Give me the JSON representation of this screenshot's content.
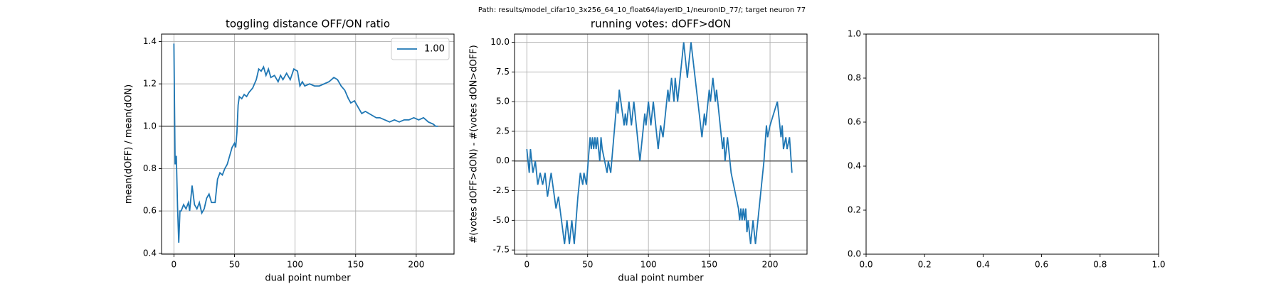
{
  "figure_title": "Path: results/model_cifar10_3x256_64_10_float64/layerID_1/neuronID_77/; target neuron 77",
  "chart_data": [
    {
      "type": "line",
      "title": "toggling distance OFF/ON ratio",
      "xlabel": "dual point number",
      "ylabel": "mean(dOFF) / mean(dON)",
      "x": [
        0,
        1,
        2,
        3,
        4,
        5,
        6,
        8,
        10,
        12,
        13,
        15,
        17,
        19,
        21,
        23,
        25,
        27,
        29,
        31,
        34,
        36,
        38,
        40,
        42,
        44,
        46,
        48,
        50,
        51,
        52,
        53,
        54,
        56,
        58,
        60,
        62,
        65,
        68,
        70,
        72,
        74,
        76,
        78,
        80,
        83,
        86,
        88,
        90,
        93,
        96,
        99,
        102,
        104,
        106,
        108,
        112,
        116,
        120,
        124,
        128,
        132,
        135,
        138,
        141,
        144,
        146,
        149,
        152,
        155,
        158,
        161,
        164,
        167,
        170,
        174,
        178,
        182,
        186,
        190,
        194,
        198,
        202,
        206,
        210,
        214,
        216,
        218
      ],
      "series": [
        {
          "name": "1.00",
          "color": "#1f77b4",
          "values": [
            1.39,
            0.82,
            0.86,
            0.62,
            0.45,
            0.6,
            0.6,
            0.63,
            0.61,
            0.64,
            0.6,
            0.72,
            0.63,
            0.61,
            0.64,
            0.59,
            0.61,
            0.66,
            0.68,
            0.64,
            0.64,
            0.75,
            0.78,
            0.77,
            0.8,
            0.82,
            0.86,
            0.9,
            0.92,
            0.9,
            0.97,
            1.1,
            1.14,
            1.13,
            1.15,
            1.14,
            1.16,
            1.18,
            1.22,
            1.27,
            1.26,
            1.28,
            1.24,
            1.27,
            1.23,
            1.24,
            1.21,
            1.24,
            1.22,
            1.25,
            1.22,
            1.27,
            1.26,
            1.19,
            1.21,
            1.19,
            1.2,
            1.19,
            1.19,
            1.2,
            1.21,
            1.23,
            1.22,
            1.19,
            1.17,
            1.13,
            1.11,
            1.12,
            1.09,
            1.06,
            1.07,
            1.06,
            1.05,
            1.04,
            1.04,
            1.03,
            1.02,
            1.03,
            1.02,
            1.03,
            1.03,
            1.04,
            1.03,
            1.04,
            1.02,
            1.01,
            1.0,
            1.0
          ]
        }
      ],
      "hline": 1,
      "hline_color": "#555555",
      "xlim": [
        -10.2,
        231.2
      ],
      "ylim": [
        0.396,
        1.435
      ],
      "xticks": [
        0,
        50,
        100,
        150,
        200
      ],
      "yticks": [
        0.4,
        0.6,
        0.8,
        {
          "value": 1,
          "label": "1.0"
        },
        1.2,
        1.4
      ],
      "grid": true,
      "legend": "upper right"
    },
    {
      "type": "line",
      "title": "running votes: dOFF>dON",
      "xlabel": "dual point number",
      "ylabel": "#(votes dOFF>dON) - #(votes dON>dOFF)",
      "x": [
        0,
        2,
        3,
        5,
        7,
        9,
        11,
        13,
        15,
        17,
        20,
        24,
        26,
        31,
        33,
        35,
        37,
        39,
        42,
        44,
        46,
        47,
        49,
        52,
        53,
        54,
        55,
        56,
        57,
        58,
        60,
        61,
        62,
        64,
        66,
        67,
        69,
        74,
        75,
        76,
        80,
        81,
        82,
        84,
        86,
        88,
        93,
        97,
        98,
        100,
        102,
        104,
        108,
        110,
        112,
        116,
        117,
        119,
        121,
        122,
        124,
        129,
        132,
        135,
        144,
        146,
        147,
        150,
        151,
        153,
        155,
        156,
        161,
        162,
        163,
        165,
        166,
        168,
        174,
        175,
        176,
        177,
        178,
        179,
        180,
        181,
        182,
        184,
        186,
        188,
        195,
        197,
        198,
        200,
        206,
        209,
        210,
        211,
        213,
        214,
        216,
        218
      ],
      "series": [
        {
          "name": null,
          "color": "#1f77b4",
          "values": [
            1,
            -1,
            1,
            -1,
            0,
            -2,
            -1,
            -2,
            -1,
            -3,
            -1,
            -4,
            -3,
            -7,
            -5,
            -7,
            -5,
            -7,
            -3,
            -1,
            -2,
            -1,
            -2,
            2,
            1,
            2,
            1,
            2,
            1,
            2,
            0,
            2,
            1,
            0,
            -1,
            0,
            -1,
            5,
            4,
            6,
            3,
            4,
            3,
            5,
            3,
            5,
            0,
            4,
            3,
            5,
            3,
            5,
            1,
            3,
            2,
            6,
            5,
            7,
            5,
            7,
            5,
            10,
            7,
            10,
            2,
            4,
            3,
            6,
            5,
            7,
            5,
            6,
            1,
            2,
            0,
            2,
            1,
            -1,
            -4,
            -5,
            -4,
            -5,
            -4,
            -5,
            -4,
            -6,
            -5,
            -7,
            -5,
            -7,
            0,
            3,
            2,
            3,
            5,
            2,
            3,
            1,
            2,
            1,
            2,
            -1
          ]
        }
      ],
      "hline": 0,
      "hline_color": "#555555",
      "xlim": [
        -10.1,
        230.4
      ],
      "ylim": [
        -7.85,
        10.69
      ],
      "xticks": [
        0,
        50,
        100,
        150,
        200
      ],
      "yticks": [
        -7.5,
        {
          "value": -5,
          "label": "-5.0"
        },
        -2.5,
        {
          "value": 0,
          "label": "0.0"
        },
        2.5,
        {
          "value": 5,
          "label": "5.0"
        },
        7.5,
        {
          "value": 10,
          "label": "10.0"
        }
      ],
      "grid": true
    },
    {
      "type": "line",
      "xlim": [
        0,
        1
      ],
      "ylim": [
        0,
        1
      ],
      "xticks": [
        {
          "value": 0,
          "label": "0.0"
        },
        0.2,
        0.4,
        0.6,
        0.8,
        {
          "value": 1,
          "label": "1.0"
        }
      ],
      "yticks": [
        {
          "value": 0,
          "label": "0.0"
        },
        0.2,
        0.4,
        0.6,
        0.8,
        {
          "value": 1,
          "label": "1.0"
        }
      ],
      "grid": false
    }
  ]
}
